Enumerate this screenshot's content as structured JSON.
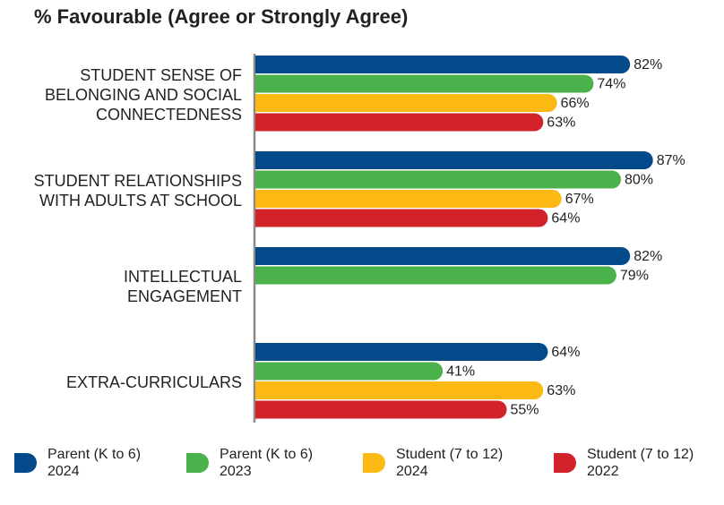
{
  "chart_data": {
    "type": "bar",
    "orientation": "horizontal",
    "title": "% Favourable (Agree or Strongly Agree)",
    "categories": [
      "STUDENT SENSE OF\nBELONGING AND SOCIAL\nCONNECTEDNESS",
      "STUDENT RELATIONSHIPS\nWITH ADULTS AT SCHOOL",
      "INTELLECTUAL\nENGAGEMENT",
      "EXTRA-CURRICULARS"
    ],
    "series": [
      {
        "name": "Parent (K to 6)\n2024",
        "color": "#034a8a",
        "values": [
          82,
          87,
          82,
          64
        ],
        "value_labels": [
          "82%",
          "87%",
          "82%",
          "64%"
        ]
      },
      {
        "name": "Parent (K to 6)\n2023",
        "color": "#4bb14a",
        "values": [
          74,
          80,
          79,
          41
        ],
        "value_labels": [
          "74%",
          "80%",
          "79%",
          "41%"
        ]
      },
      {
        "name": "Student (7 to 12)\n2024",
        "color": "#fdb913",
        "values": [
          66,
          67,
          null,
          63
        ],
        "value_labels": [
          "66%",
          "67%",
          null,
          "63%"
        ]
      },
      {
        "name": "Student (7 to 12)\n2022",
        "color": "#d2232a",
        "values": [
          63,
          64,
          null,
          55
        ],
        "value_labels": [
          "63%",
          "64%",
          null,
          "55%"
        ]
      }
    ]
  }
}
